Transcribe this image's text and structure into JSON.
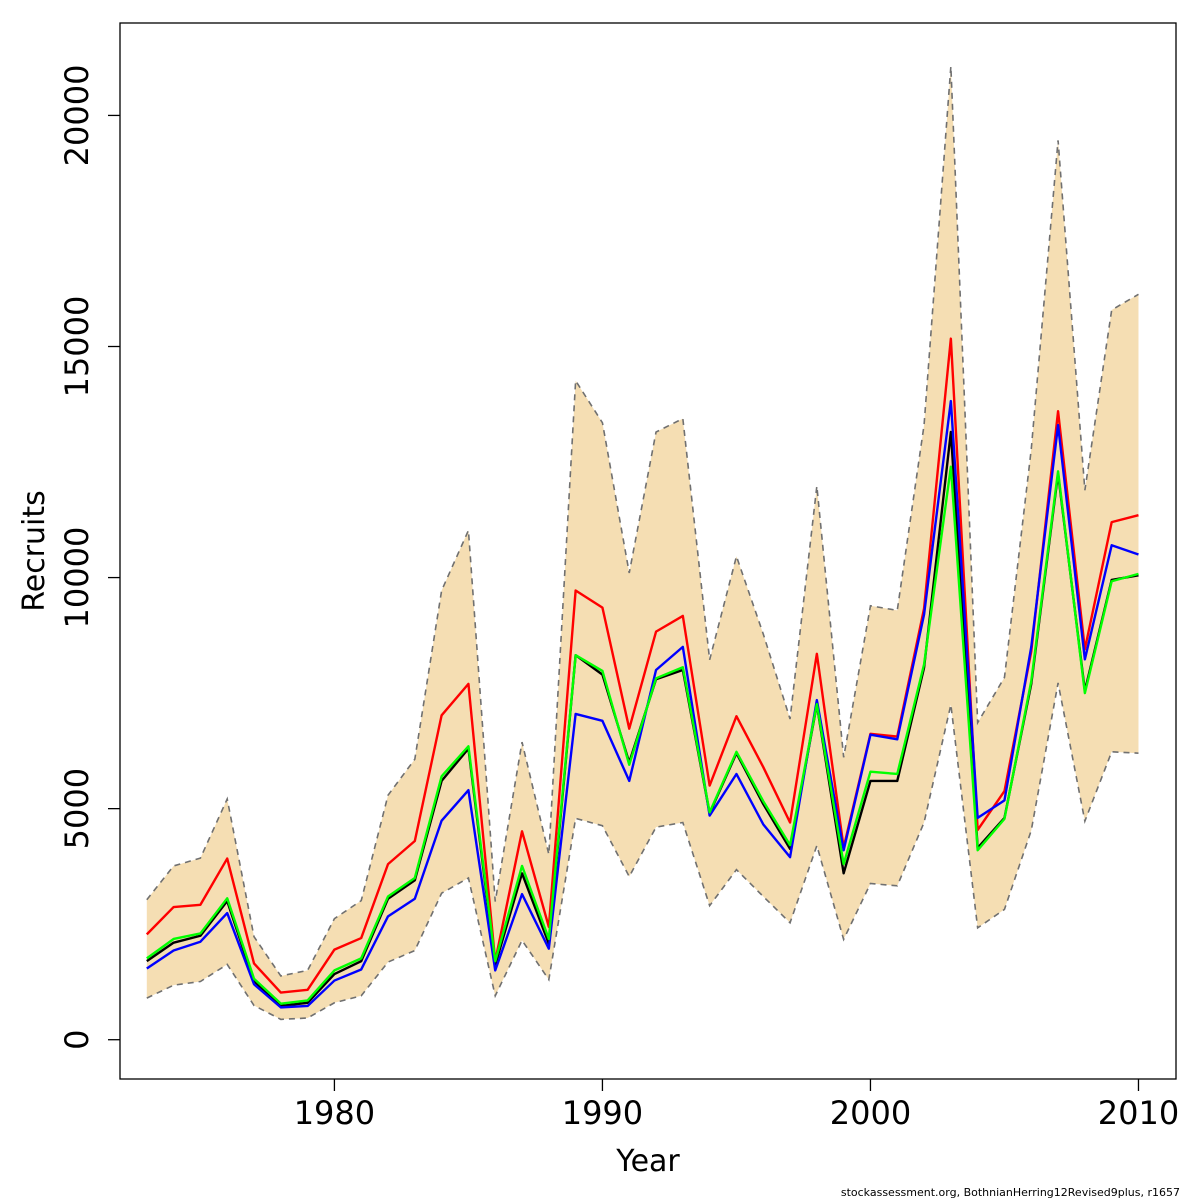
{
  "chart_data": {
    "type": "line",
    "title": "",
    "xlabel": "Year",
    "ylabel": "Recruits",
    "xlim": [
      1972,
      2011.4
    ],
    "ylim": [
      -850,
      22000
    ],
    "x_ticks": [
      1980,
      1990,
      2000,
      2010
    ],
    "y_ticks": [
      0,
      5000,
      10000,
      15000,
      20000
    ],
    "x_tick_labels": [
      "1980",
      "1990",
      "2000",
      "2010"
    ],
    "y_tick_labels": [
      "0",
      "5000",
      "10000",
      "15000",
      "20000"
    ],
    "grid": false,
    "legend": "none",
    "footnote": "stockassessment.org, BothnianHerring12Revised9plus, r1657",
    "colors": {
      "band_fill": "#F5DEB3",
      "band_edge": "#707070",
      "black": "#000000",
      "red": "#FF0000",
      "blue": "#0000FF",
      "green": "#00FF00"
    },
    "x": [
      1973,
      1974,
      1975,
      1976,
      1977,
      1978,
      1979,
      1980,
      1981,
      1982,
      1983,
      1984,
      1985,
      1986,
      1987,
      1988,
      1989,
      1990,
      1991,
      1992,
      1993,
      1994,
      1995,
      1996,
      1997,
      1998,
      1999,
      2000,
      2001,
      2002,
      2003,
      2004,
      2005,
      2006,
      2007,
      2008,
      2009,
      2010
    ],
    "band": {
      "lower": [
        900,
        1180,
        1260,
        1630,
        740,
        440,
        470,
        800,
        950,
        1680,
        1930,
        3170,
        3500,
        950,
        2150,
        1300,
        4790,
        4630,
        3530,
        4600,
        4700,
        2900,
        3680,
        3100,
        2530,
        4200,
        2170,
        3380,
        3330,
        4700,
        7250,
        2420,
        2820,
        4530,
        7720,
        4730,
        6230,
        6200
      ],
      "upper": [
        3030,
        3760,
        3930,
        5210,
        2230,
        1380,
        1500,
        2620,
        3010,
        5290,
        6070,
        9720,
        11020,
        2990,
        6440,
        4010,
        14260,
        13350,
        10100,
        13150,
        13440,
        8220,
        10460,
        8780,
        6940,
        11980,
        6110,
        9390,
        9290,
        13300,
        21060,
        6860,
        7840,
        12780,
        19460,
        11890,
        15790,
        16130
      ]
    },
    "series": [
      {
        "values": [
          1700,
          2100,
          2250,
          3000,
          1270,
          730,
          800,
          1420,
          1700,
          3050,
          3450,
          5600,
          6300,
          1620,
          3600,
          2080,
          8320,
          7900,
          6000,
          7800,
          8000,
          4900,
          6200,
          5100,
          4130,
          7250,
          3600,
          5600,
          5600,
          8050,
          13150,
          4150,
          4800,
          7700,
          12250,
          7550,
          9950,
          10050
        ]
      },
      {
        "values": [
          2280,
          2870,
          2920,
          3920,
          1650,
          1020,
          1080,
          1950,
          2200,
          3800,
          4300,
          7020,
          7700,
          1700,
          4510,
          2440,
          9720,
          9350,
          6730,
          8830,
          9170,
          5500,
          7000,
          5900,
          4700,
          8350,
          4160,
          6620,
          6560,
          9330,
          15170,
          4540,
          5380,
          8400,
          13600,
          8450,
          11200,
          11350
        ]
      },
      {
        "values": [
          1540,
          1930,
          2120,
          2740,
          1200,
          700,
          730,
          1280,
          1520,
          2670,
          3050,
          4740,
          5400,
          1500,
          3150,
          1970,
          7050,
          6900,
          5600,
          8000,
          8500,
          4850,
          5750,
          4660,
          3950,
          7350,
          4100,
          6600,
          6500,
          9200,
          13820,
          4800,
          5180,
          8500,
          13300,
          8230,
          10700,
          10500
        ]
      },
      {
        "values": [
          1760,
          2180,
          2300,
          3060,
          1320,
          780,
          850,
          1500,
          1760,
          3100,
          3500,
          5700,
          6350,
          1700,
          3760,
          2180,
          8320,
          7980,
          5950,
          7820,
          8060,
          4920,
          6230,
          5160,
          4210,
          7260,
          3800,
          5800,
          5750,
          8120,
          12400,
          4100,
          4780,
          7760,
          12300,
          7500,
          9920,
          10080
        ]
      }
    ]
  }
}
